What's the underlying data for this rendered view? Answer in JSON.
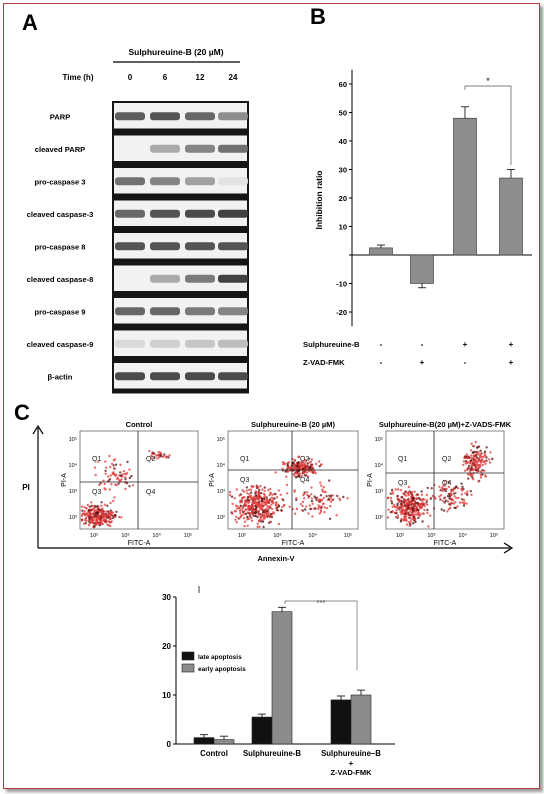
{
  "panel_a": {
    "letter": "A",
    "treatment_label": "Sulphureuine-B (20 µM)",
    "time_label": "Time (h)",
    "timepoints": [
      "0",
      "6",
      "12",
      "24"
    ],
    "bands": [
      {
        "label": "PARP",
        "intensity": [
          0.75,
          0.8,
          0.7,
          0.5
        ]
      },
      {
        "label": "cleaved PARP",
        "intensity": [
          0.0,
          0.35,
          0.55,
          0.65
        ]
      },
      {
        "label": "pro-caspase 3",
        "intensity": [
          0.65,
          0.55,
          0.4,
          0.05
        ]
      },
      {
        "label": "cleaved caspase-3",
        "intensity": [
          0.7,
          0.8,
          0.85,
          0.9
        ]
      },
      {
        "label": "pro-caspase 8",
        "intensity": [
          0.8,
          0.8,
          0.8,
          0.8
        ]
      },
      {
        "label": "cleaved caspase-8",
        "intensity": [
          0.0,
          0.35,
          0.6,
          0.9
        ]
      },
      {
        "label": "pro-caspase 9",
        "intensity": [
          0.7,
          0.7,
          0.6,
          0.55
        ]
      },
      {
        "label": "cleaved caspase-9",
        "intensity": [
          0.1,
          0.15,
          0.2,
          0.25
        ]
      },
      {
        "label": "β-actin",
        "intensity": [
          0.85,
          0.85,
          0.85,
          0.85
        ]
      }
    ]
  },
  "panel_b": {
    "letter": "B",
    "chart_data": {
      "type": "bar",
      "ylabel": "Inhibition ratio",
      "ylim": [
        -25,
        65
      ],
      "yticks": [
        -20,
        -10,
        0,
        10,
        20,
        30,
        40,
        50,
        60
      ],
      "ytick_labels": [
        "-20",
        "-10",
        "",
        "10",
        "20",
        "30",
        "40",
        "50",
        "60"
      ],
      "values": [
        2.5,
        -10,
        48,
        27
      ],
      "errors": [
        1,
        1.5,
        4,
        3
      ],
      "conditions": [
        {
          "label": "Sulphureuine-B",
          "signs": [
            "-",
            "-",
            "+",
            "+"
          ]
        },
        {
          "label": "Z-VAD-FMK",
          "signs": [
            "-",
            "+",
            "-",
            "+"
          ]
        }
      ],
      "significance": {
        "between": [
          2,
          3
        ],
        "label": "*"
      }
    }
  },
  "panel_c": {
    "letter": "C",
    "y_axis_label": "PI",
    "x_axis_label": "Annexin-V",
    "plots": [
      {
        "title": "Control"
      },
      {
        "title": "Sulphureuine-B (20 µM)"
      },
      {
        "title": "Sulphureuine-B(20 µM)+Z-VADS-FMK"
      }
    ],
    "quadrants": [
      "Q1",
      "Q2",
      "Q3",
      "Q4"
    ],
    "axis_x_title": "FITC-A",
    "axis_y_title": "PI-A",
    "tick_labels": [
      "10²",
      "10³",
      "10⁴",
      "10⁵"
    ]
  },
  "panel_c_chart": {
    "chart_data": {
      "type": "bar",
      "categories": [
        "Control",
        "Sulphureuine-B",
        "Sulphureuine–B"
      ],
      "category_sublabels": [
        "",
        "",
        "+"
      ],
      "category_sublabels2": [
        "",
        "",
        "Z-VAD-FMK"
      ],
      "ylim": [
        0,
        30
      ],
      "yticks": [
        0,
        10,
        20,
        30
      ],
      "series": [
        {
          "name": "late apoptosis",
          "color": "#111111",
          "values": [
            1.3,
            5.5,
            9.0
          ],
          "errors": [
            0.6,
            0.6,
            0.8
          ]
        },
        {
          "name": "early apoptosis",
          "color": "#8c8c8c",
          "values": [
            0.9,
            27,
            10
          ],
          "errors": [
            0.7,
            0.9,
            1.0
          ]
        }
      ],
      "significance": {
        "label": "***"
      },
      "legend_placement": "upper-left"
    }
  }
}
